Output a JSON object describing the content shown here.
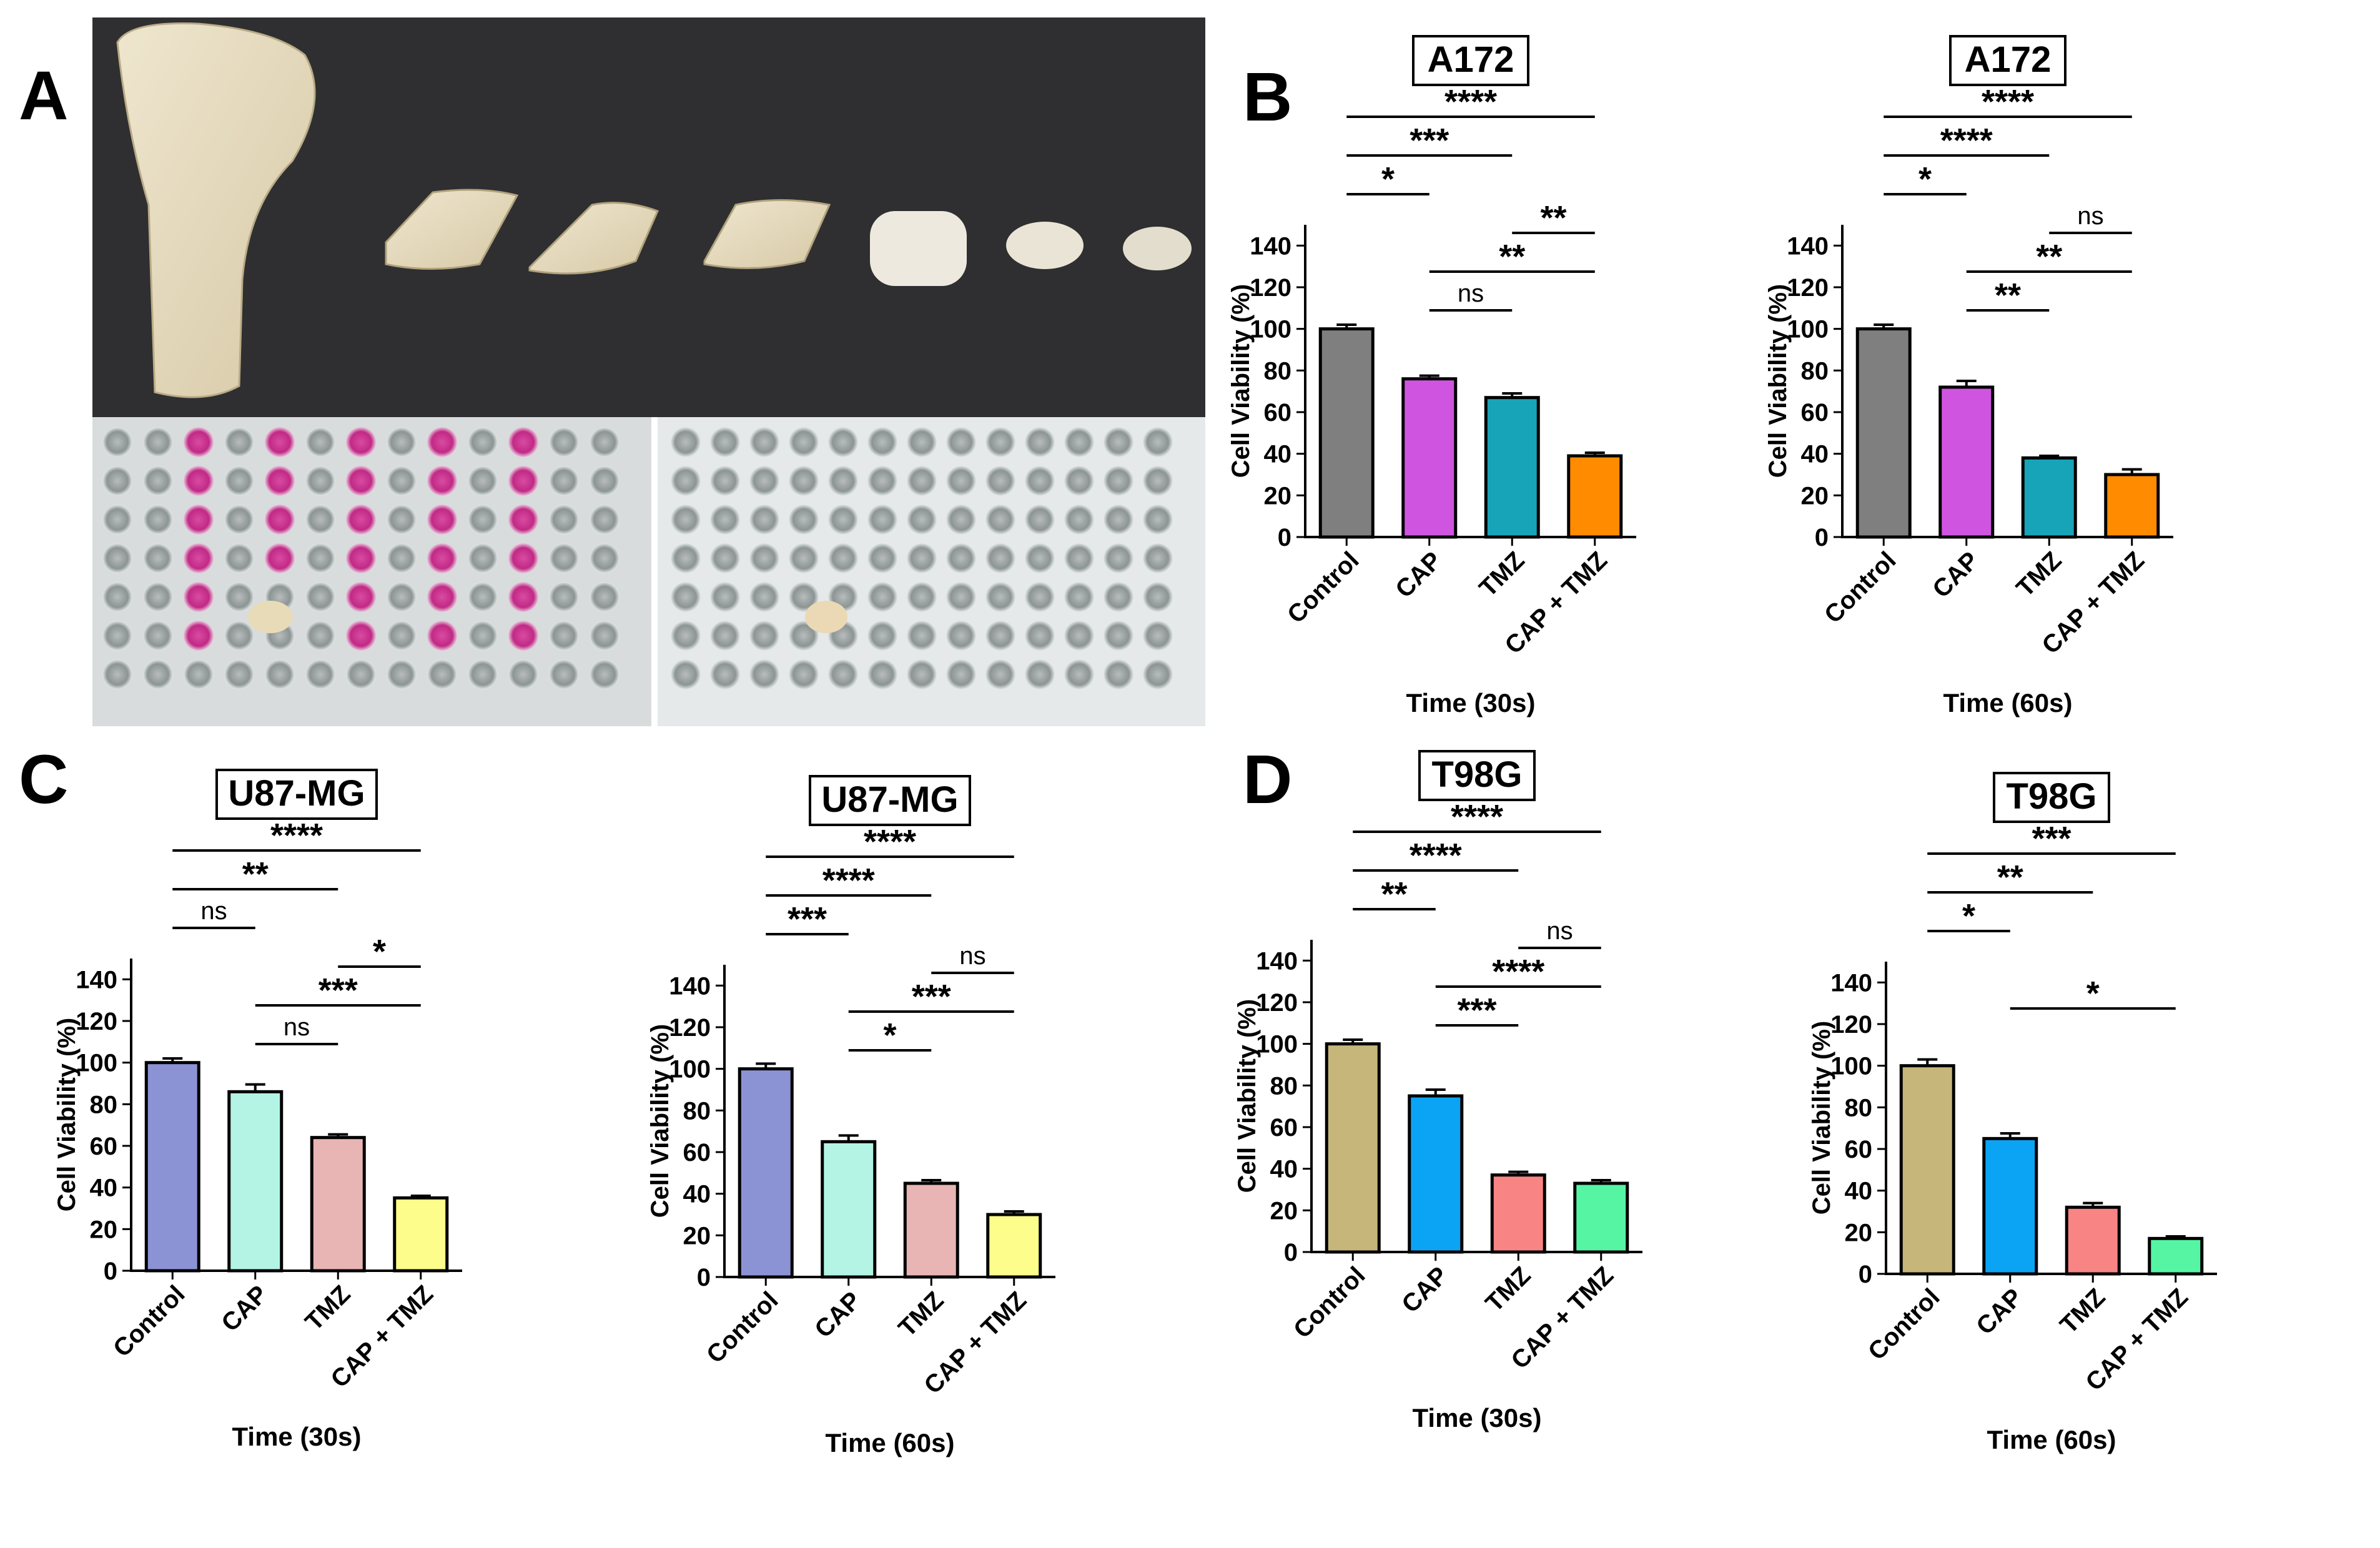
{
  "panel_labels": [
    "A",
    "B",
    "C",
    "D"
  ],
  "colors": {
    "B": [
      "#7f7f7f",
      "#cf55e0",
      "#17a3b8",
      "#ff8c00"
    ],
    "C": [
      "#8c93d4",
      "#b3f4e4",
      "#e8b4b4",
      "#fdfd8c"
    ],
    "D": [
      "#c6b67a",
      "#0ba4f5",
      "#f88484",
      "#55f5a3"
    ]
  },
  "chart_data": [
    {
      "id": "B1",
      "panel": "B",
      "type": "bar",
      "title": "A172",
      "categories": [
        "Control",
        "CAP",
        "TMZ",
        "CAP + TMZ"
      ],
      "values": [
        100,
        76,
        67,
        39
      ],
      "errors": [
        2,
        1.5,
        2,
        1.5
      ],
      "ylabel": "Cell Viability (%)",
      "xlabel": "Time (30s)",
      "ylim": [
        0,
        150
      ],
      "yticks": [
        0,
        20,
        40,
        60,
        80,
        100,
        120,
        140
      ],
      "significance": [
        {
          "from": 0,
          "to": 3,
          "label": "****",
          "level": 8
        },
        {
          "from": 0,
          "to": 2,
          "label": "***",
          "level": 7
        },
        {
          "from": 0,
          "to": 1,
          "label": "*",
          "level": 6
        },
        {
          "from": 2,
          "to": 3,
          "label": "**",
          "level": 5
        },
        {
          "from": 1,
          "to": 3,
          "label": "**",
          "level": 4
        },
        {
          "from": 1,
          "to": 2,
          "label": "ns",
          "level": 3
        }
      ]
    },
    {
      "id": "B2",
      "panel": "B",
      "type": "bar",
      "title": "A172",
      "categories": [
        "Control",
        "CAP",
        "TMZ",
        "CAP + TMZ"
      ],
      "values": [
        100,
        72,
        38,
        30
      ],
      "errors": [
        2,
        3,
        1,
        2.5
      ],
      "ylabel": "Cell Viability (%)",
      "xlabel": "Time (60s)",
      "ylim": [
        0,
        150
      ],
      "yticks": [
        0,
        20,
        40,
        60,
        80,
        100,
        120,
        140
      ],
      "significance": [
        {
          "from": 0,
          "to": 3,
          "label": "****",
          "level": 8
        },
        {
          "from": 0,
          "to": 2,
          "label": "****",
          "level": 7
        },
        {
          "from": 0,
          "to": 1,
          "label": "*",
          "level": 6
        },
        {
          "from": 2,
          "to": 3,
          "label": "ns",
          "level": 5
        },
        {
          "from": 1,
          "to": 3,
          "label": "**",
          "level": 4
        },
        {
          "from": 1,
          "to": 2,
          "label": "**",
          "level": 3
        }
      ]
    },
    {
      "id": "C1",
      "panel": "C",
      "type": "bar",
      "title": "U87-MG",
      "categories": [
        "Control",
        "CAP",
        "TMZ",
        "CAP + TMZ"
      ],
      "values": [
        100,
        86,
        64,
        35
      ],
      "errors": [
        2,
        3.5,
        1.5,
        1
      ],
      "ylabel": "Cell Viability (%)",
      "xlabel": "Time (30s)",
      "ylim": [
        0,
        150
      ],
      "yticks": [
        0,
        20,
        40,
        60,
        80,
        100,
        120,
        140
      ],
      "significance": [
        {
          "from": 0,
          "to": 3,
          "label": "****",
          "level": 8
        },
        {
          "from": 0,
          "to": 2,
          "label": "**",
          "level": 7
        },
        {
          "from": 0,
          "to": 1,
          "label": "ns",
          "level": 6
        },
        {
          "from": 2,
          "to": 3,
          "label": "*",
          "level": 5
        },
        {
          "from": 1,
          "to": 3,
          "label": "***",
          "level": 4
        },
        {
          "from": 1,
          "to": 2,
          "label": "ns",
          "level": 3
        }
      ]
    },
    {
      "id": "C2",
      "panel": "C",
      "type": "bar",
      "title": "U87-MG",
      "categories": [
        "Control",
        "CAP",
        "TMZ",
        "CAP + TMZ"
      ],
      "values": [
        100,
        65,
        45,
        30
      ],
      "errors": [
        2.5,
        3,
        1.5,
        1.5
      ],
      "ylabel": "Cell Viability (%)",
      "xlabel": "Time (60s)",
      "ylim": [
        0,
        150
      ],
      "yticks": [
        0,
        20,
        40,
        60,
        80,
        100,
        120,
        140
      ],
      "significance": [
        {
          "from": 0,
          "to": 3,
          "label": "****",
          "level": 8
        },
        {
          "from": 0,
          "to": 2,
          "label": "****",
          "level": 7
        },
        {
          "from": 0,
          "to": 1,
          "label": "***",
          "level": 6
        },
        {
          "from": 2,
          "to": 3,
          "label": "ns",
          "level": 5
        },
        {
          "from": 1,
          "to": 3,
          "label": "***",
          "level": 4
        },
        {
          "from": 1,
          "to": 2,
          "label": "*",
          "level": 3
        }
      ]
    },
    {
      "id": "D1",
      "panel": "D",
      "type": "bar",
      "title": "T98G",
      "categories": [
        "Control",
        "CAP",
        "TMZ",
        "CAP + TMZ"
      ],
      "values": [
        100,
        75,
        37,
        33
      ],
      "errors": [
        2,
        3,
        1.5,
        1.5
      ],
      "ylabel": "Cell Viability (%)",
      "xlabel": "Time (30s)",
      "ylim": [
        0,
        150
      ],
      "yticks": [
        0,
        20,
        40,
        60,
        80,
        100,
        120,
        140
      ],
      "significance": [
        {
          "from": 0,
          "to": 3,
          "label": "****",
          "level": 8
        },
        {
          "from": 0,
          "to": 2,
          "label": "****",
          "level": 7
        },
        {
          "from": 0,
          "to": 1,
          "label": "**",
          "level": 6
        },
        {
          "from": 2,
          "to": 3,
          "label": "ns",
          "level": 5
        },
        {
          "from": 1,
          "to": 3,
          "label": "****",
          "level": 4
        },
        {
          "from": 1,
          "to": 2,
          "label": "***",
          "level": 3
        }
      ]
    },
    {
      "id": "D2",
      "panel": "D",
      "type": "bar",
      "title": "T98G",
      "categories": [
        "Control",
        "CAP",
        "TMZ",
        "CAP + TMZ"
      ],
      "values": [
        100,
        65,
        32,
        17
      ],
      "errors": [
        3,
        2.5,
        2,
        1
      ],
      "ylabel": "Cell Viability (%)",
      "xlabel": "Time (60s)",
      "ylim": [
        0,
        150
      ],
      "yticks": [
        0,
        20,
        40,
        60,
        80,
        100,
        120,
        140
      ],
      "significance": [
        {
          "from": 0,
          "to": 3,
          "label": "***",
          "level": 8
        },
        {
          "from": 0,
          "to": 2,
          "label": "**",
          "level": 7
        },
        {
          "from": 0,
          "to": 1,
          "label": "*",
          "level": 6
        },
        {
          "from": 1,
          "to": 3,
          "label": "*",
          "level": 4
        }
      ]
    }
  ]
}
